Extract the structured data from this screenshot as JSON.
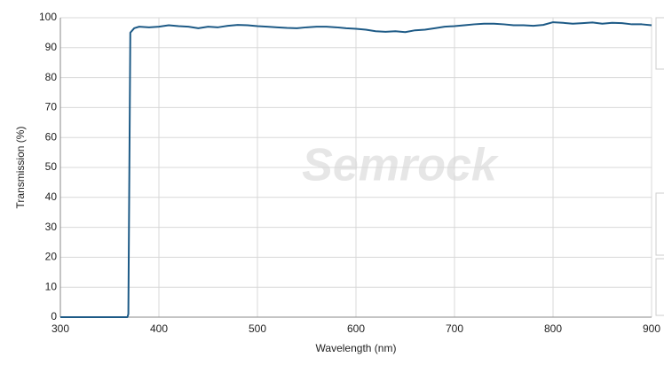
{
  "chart_data": {
    "type": "line",
    "watermark": "Semrock",
    "x_label": "Wavelength (nm)",
    "y_label": "Transmission (%)",
    "x": [
      300,
      310,
      320,
      330,
      340,
      350,
      360,
      368,
      369,
      371,
      375,
      380,
      390,
      400,
      410,
      420,
      430,
      440,
      450,
      460,
      470,
      480,
      490,
      500,
      510,
      520,
      530,
      540,
      550,
      560,
      570,
      580,
      590,
      600,
      610,
      620,
      630,
      640,
      650,
      660,
      670,
      680,
      690,
      700,
      710,
      720,
      730,
      740,
      750,
      760,
      770,
      780,
      790,
      800,
      810,
      820,
      830,
      840,
      850,
      860,
      870,
      880,
      890,
      900
    ],
    "series": [
      {
        "name": "Transmission",
        "color": "#1d5a86",
        "values": [
          0,
          0,
          0,
          0,
          0,
          0,
          0,
          0,
          1,
          95,
          96.5,
          97,
          96.8,
          97,
          97.5,
          97.2,
          97,
          96.5,
          97,
          96.8,
          97.3,
          97.6,
          97.5,
          97.2,
          97,
          96.8,
          96.6,
          96.5,
          96.8,
          97,
          97,
          96.8,
          96.5,
          96.3,
          96,
          95.5,
          95.3,
          95.5,
          95.2,
          95.8,
          96,
          96.5,
          97,
          97.2,
          97.5,
          97.8,
          98,
          98,
          97.8,
          97.5,
          97.5,
          97.3,
          97.6,
          98.5,
          98.3,
          98,
          98.2,
          98.4,
          98,
          98.3,
          98.2,
          97.8,
          97.8,
          97.5
        ]
      }
    ],
    "xlim": [
      300,
      900
    ],
    "xticks": [
      300,
      400,
      500,
      600,
      700,
      800,
      900
    ],
    "ylim": [
      0,
      100
    ],
    "yticks": [
      0,
      10,
      20,
      30,
      40,
      50,
      60,
      70,
      80,
      90,
      100
    ],
    "grid": true
  }
}
